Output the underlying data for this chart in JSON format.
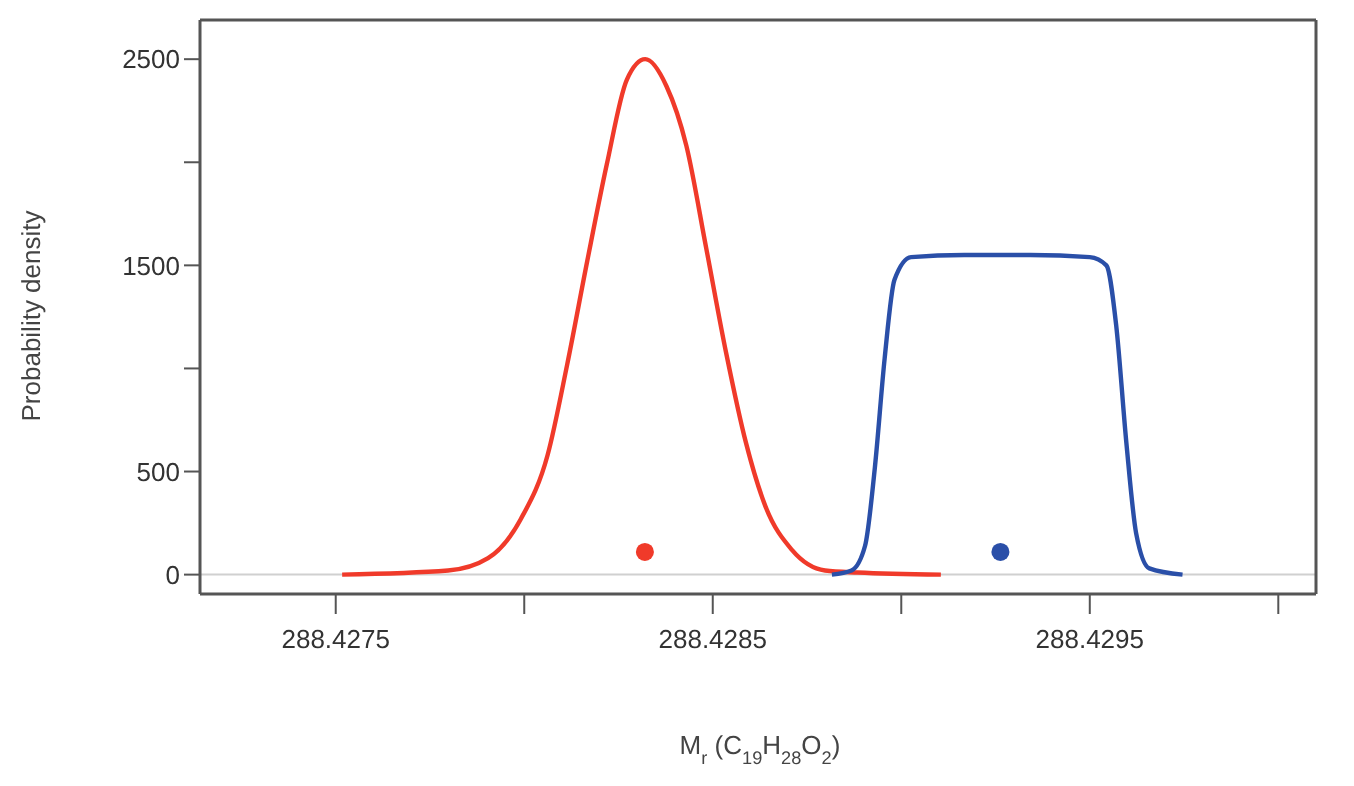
{
  "chart_data": {
    "type": "line",
    "xlabel": "M$_{r}$ (C$_{19}$H$_{28}$O$_{2}$)",
    "ylabel": "Probability density",
    "xlim": [
      288.42714,
      288.4301
    ],
    "ylim": [
      -94,
      2690
    ],
    "xticks": [
      288.4275,
      {
        "value": 288.428,
        "label": null
      },
      288.4285,
      {
        "value": 288.429,
        "label": null
      },
      288.4295,
      {
        "value": 288.43,
        "label": null
      }
    ],
    "yticks": [
      0,
      500,
      {
        "value": 1000,
        "label": null
      },
      1500,
      {
        "value": 2000,
        "label": null
      },
      2500
    ],
    "grid": false,
    "line_style": "solid",
    "ref_lines": [
      {
        "axis": "y",
        "value": 0,
        "color": "#d0d0d0"
      }
    ],
    "series": [
      {
        "marker": "none",
        "color": "#f03a2a",
        "x": [
          288.427517,
          288.427798,
          288.427904,
          288.427991,
          288.428062,
          288.428114,
          288.428167,
          288.428219,
          288.428272,
          288.428321,
          288.428377,
          288.42843,
          288.428483,
          288.428535,
          288.428588,
          288.42864,
          288.42871,
          288.428798,
          288.428884,
          288.429105
        ],
        "values": [
          0,
          20,
          80,
          270,
          580,
          1020,
          1520,
          1990,
          2400,
          2500,
          2370,
          2080,
          1580,
          1080,
          640,
          330,
          120,
          20,
          10,
          0
        ]
      },
      {
        "marker": "none",
        "color": "#2a4fa8",
        "x": [
          288.428816,
          288.428868,
          288.428904,
          288.42893,
          288.428956,
          288.428982,
          288.429026,
          288.429167,
          288.429342,
          288.4295,
          288.429544,
          288.42957,
          288.429597,
          288.429623,
          288.429658,
          288.429746
        ],
        "values": [
          0,
          20,
          140,
          520,
          1050,
          1430,
          1540,
          1550,
          1550,
          1540,
          1500,
          1210,
          640,
          200,
          30,
          0
        ]
      },
      {
        "type": "scatter",
        "marker": "circle",
        "color": "#f03a2a",
        "x": [
          288.42832
        ],
        "values": [
          110
        ]
      },
      {
        "type": "scatter",
        "marker": "circle",
        "color": "#2a4fa8",
        "x": [
          288.429263
        ],
        "values": [
          110
        ]
      }
    ]
  }
}
